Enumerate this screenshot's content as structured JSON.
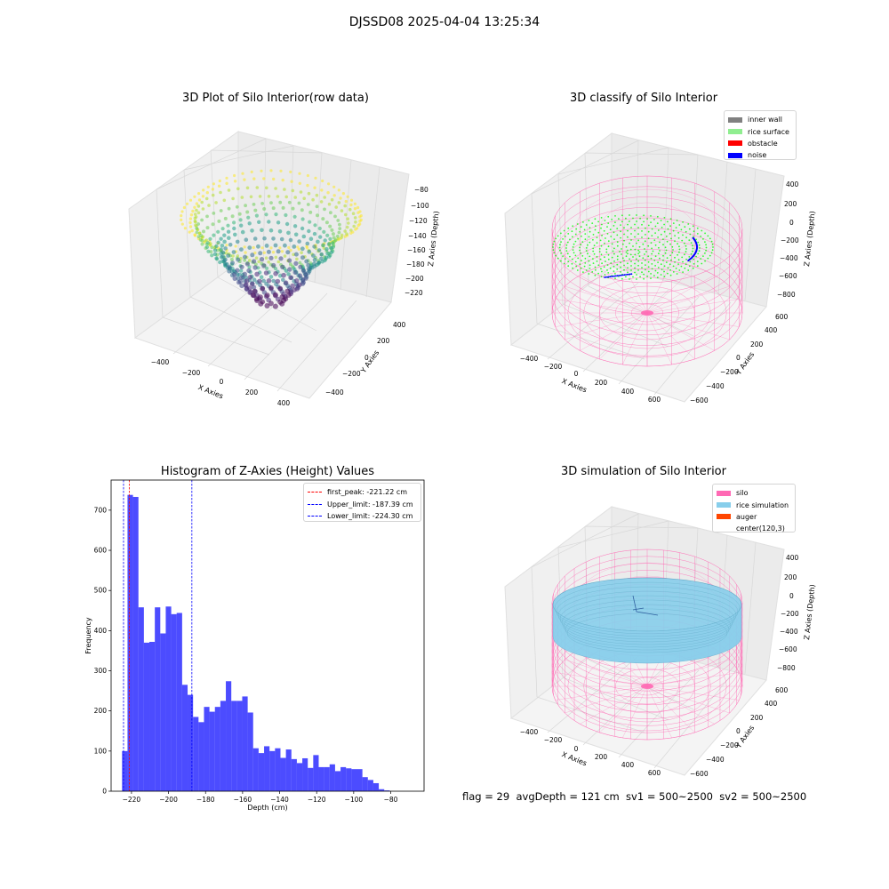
{
  "figure": {
    "suptitle": "DJSSD08 2025-04-04 13:25:34",
    "footer": "flag = 29  avgDepth = 121 cm  sv1 = 500~2500  sv2 = 500~2500"
  },
  "panel_tl": {
    "title": "3D Plot of Silo Interior(row data)",
    "xlabel": "X Axies",
    "ylabel": "Y Axies",
    "zlabel": "Z Axies (Depth)",
    "x_ticks": [
      "−400",
      "−200",
      "0",
      "200",
      "400"
    ],
    "y_ticks": [
      "−400",
      "−200",
      "0",
      "200",
      "400"
    ],
    "z_ticks": [
      "−80",
      "−100",
      "−120",
      "−140",
      "−160",
      "−180",
      "−200",
      "−220"
    ]
  },
  "panel_tr": {
    "title": "3D classify of Silo Interior",
    "xlabel": "X Axies",
    "ylabel": "Y Axies",
    "zlabel": "Z Axies (Depth)",
    "x_ticks": [
      "−400",
      "−200",
      "0",
      "200",
      "400",
      "600"
    ],
    "y_ticks": [
      "−600",
      "−400",
      "−200",
      "0",
      "200",
      "400",
      "600"
    ],
    "z_ticks": [
      "400",
      "200",
      "0",
      "−200",
      "−400",
      "−600",
      "−800"
    ],
    "legend": [
      {
        "label": "inner wall",
        "color": "#808080"
      },
      {
        "label": "rice surface",
        "color": "#90ee90"
      },
      {
        "label": "obstacle",
        "color": "#ff0000"
      },
      {
        "label": "noise",
        "color": "#0000ff"
      }
    ]
  },
  "panel_bl": {
    "title": "Histogram of Z-Axies (Height) Values"
  },
  "panel_br": {
    "title": "3D simulation of Silo Interior",
    "xlabel": "X Axies",
    "ylabel": "Y Axies",
    "zlabel": "Z Axies (Depth)",
    "x_ticks": [
      "−400",
      "−200",
      "0",
      "200",
      "400",
      "600"
    ],
    "y_ticks": [
      "−600",
      "−400",
      "−200",
      "0",
      "200",
      "400",
      "600"
    ],
    "z_ticks": [
      "400",
      "200",
      "0",
      "−200",
      "−400",
      "−600",
      "−800"
    ],
    "legend": [
      {
        "label": "silo",
        "color": "#ff69b4"
      },
      {
        "label": "rice simulation",
        "color": "#87ceeb"
      },
      {
        "label": "auger",
        "color": "#ff4500"
      },
      {
        "label": "center(120,3)",
        "color": "#ffffff"
      }
    ]
  },
  "chart_data": {
    "type": "bar",
    "title": "Histogram of Z-Axies (Height) Values",
    "xlabel": "Depth (cm)",
    "ylabel": "Frequency",
    "bar_color": "#0000ff",
    "bin_start": -225.1,
    "bin_width": 2.95,
    "values": [
      100,
      738,
      733,
      458,
      370,
      372,
      458,
      393,
      460,
      441,
      444,
      265,
      240,
      185,
      172,
      210,
      198,
      210,
      225,
      274,
      225,
      225,
      236,
      196,
      107,
      95,
      112,
      100,
      107,
      83,
      104,
      80,
      70,
      82,
      58,
      90,
      60,
      60,
      67,
      50,
      60,
      57,
      55,
      55,
      35,
      28,
      20,
      5,
      2
    ],
    "xlim": [
      -231,
      -62
    ],
    "ylim": [
      0,
      775
    ],
    "x_ticks": [
      -220,
      -200,
      -180,
      -160,
      -140,
      -120,
      -100,
      -80
    ],
    "x_tick_labels": [
      "−220",
      "−200",
      "−180",
      "−160",
      "−140",
      "−120",
      "−100",
      "−80"
    ],
    "y_ticks": [
      0,
      100,
      200,
      300,
      400,
      500,
      600,
      700
    ],
    "y_tick_labels": [
      "0",
      "100",
      "200",
      "300",
      "400",
      "500",
      "600",
      "700"
    ],
    "lines": [
      {
        "label": "first_peak: -221.22 cm",
        "x": -221.22,
        "color": "#ff0000"
      },
      {
        "label": "Upper_limit: -187.39 cm",
        "x": -187.39,
        "color": "#0000ff"
      },
      {
        "label": "Lower_limit: -224.30 cm",
        "x": -224.3,
        "color": "#0000ff"
      }
    ],
    "legend_position": "upper right"
  }
}
